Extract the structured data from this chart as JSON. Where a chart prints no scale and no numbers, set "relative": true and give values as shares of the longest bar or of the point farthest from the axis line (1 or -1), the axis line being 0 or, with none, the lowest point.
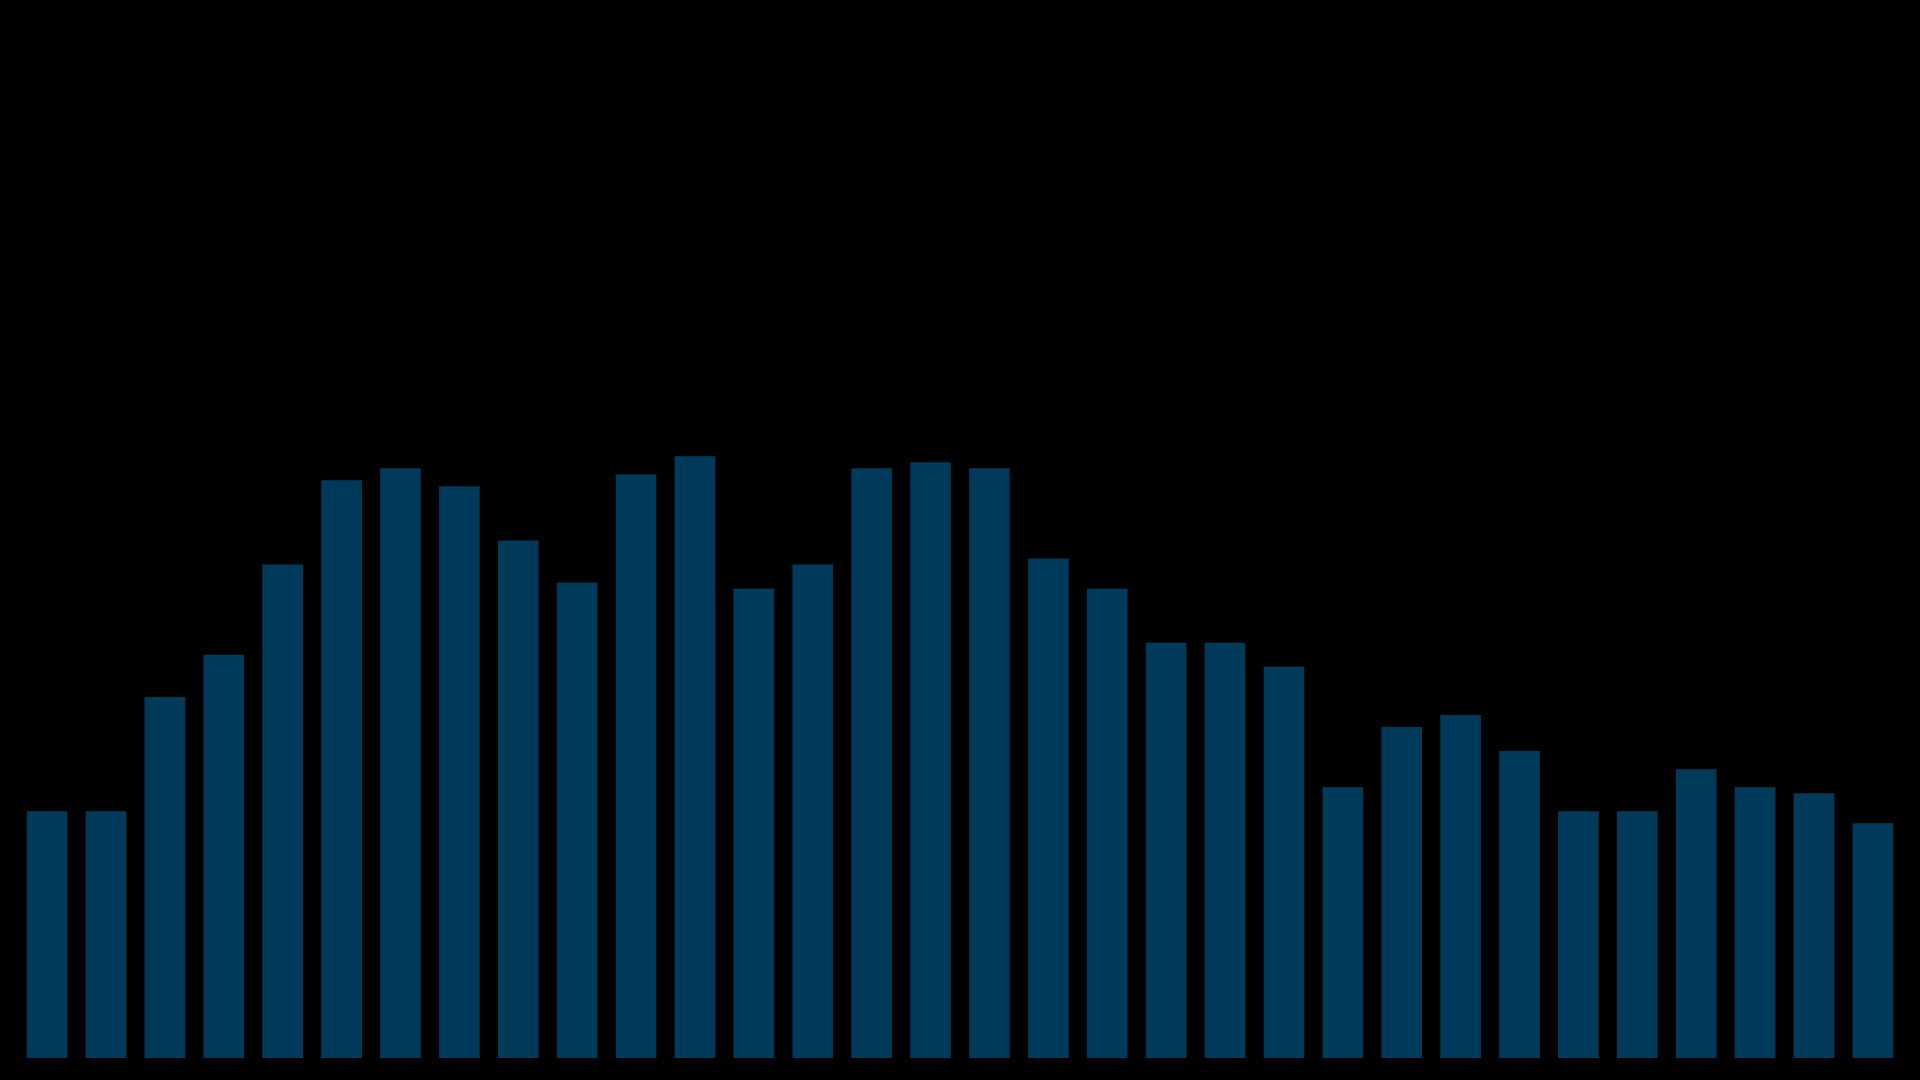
{
  "chart_data": {
    "type": "bar",
    "relative": true,
    "categories": [
      null,
      null,
      null,
      null,
      null,
      null,
      null,
      null,
      null,
      null,
      null,
      null,
      null,
      null,
      null,
      null,
      null,
      null,
      null,
      null,
      null,
      null,
      null,
      null,
      null,
      null,
      null,
      null,
      null,
      null,
      null,
      null
    ],
    "values": [
      0.41,
      0.41,
      0.6,
      0.67,
      0.82,
      0.96,
      0.98,
      0.95,
      0.86,
      0.79,
      0.97,
      1.0,
      0.78,
      0.82,
      0.98,
      0.99,
      0.98,
      0.83,
      0.78,
      0.69,
      0.69,
      0.65,
      0.45,
      0.55,
      0.57,
      0.51,
      0.41,
      0.41,
      0.48,
      0.45,
      0.44,
      0.39
    ],
    "color": "#003a5a"
  }
}
